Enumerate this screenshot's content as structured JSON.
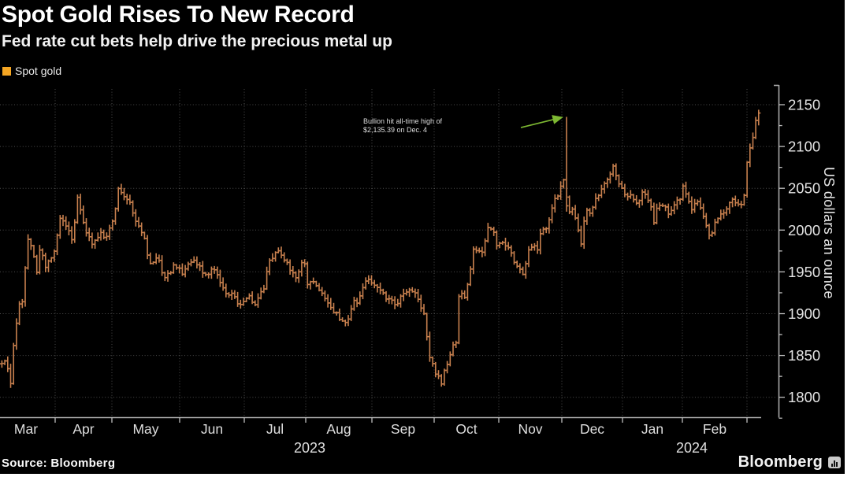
{
  "header": {
    "title": "Spot Gold Rises To New Record",
    "subtitle": "Fed rate cut bets help drive the precious metal up"
  },
  "legend": {
    "label": "Spot gold",
    "swatch_color": "#f5a623"
  },
  "footer": {
    "source_label": "Source: Bloomberg",
    "brand": "Bloomberg"
  },
  "colors": {
    "background": "#000000",
    "bar": "#c8804e",
    "arrow": "#7db832",
    "legend_swatch": "#f5a623",
    "grid": "rgba(235,235,235,0.32)",
    "axis": "#a8a8a8",
    "tick": "#c0c0c0",
    "text": "#e4e4e4"
  },
  "chart_data": {
    "type": "ohlc-bar",
    "title": "Spot Gold Rises To New Record",
    "series_name": "Spot gold",
    "ylabel": "US dollars an ounce",
    "ylim": [
      1770,
      2168
    ],
    "yticks": [
      1800,
      1850,
      1900,
      1950,
      2000,
      2050,
      2100,
      2150
    ],
    "months": [
      "Mar",
      "Apr",
      "May",
      "Jun",
      "Jul",
      "Aug",
      "Sep",
      "Oct",
      "Nov",
      "Dec",
      "Jan",
      "Feb"
    ],
    "year_labels": [
      "2023",
      "2024"
    ],
    "grid": true,
    "legend_position": "top-left",
    "annotation": {
      "line1": "Bullion hit all-time high of",
      "line2": "$2,135.39 on Dec. 4",
      "record_date": "2023-12-04",
      "record_high": 2135.39
    },
    "price_path": [
      [
        "2023-03-01",
        1837
      ],
      [
        "2023-03-02",
        1836
      ],
      [
        "2023-03-06",
        1847
      ],
      [
        "2023-03-08",
        1809
      ],
      [
        "2023-03-10",
        1868
      ],
      [
        "2023-03-13",
        1913
      ],
      [
        "2023-03-15",
        1918
      ],
      [
        "2023-03-17",
        1989
      ],
      [
        "2023-03-20",
        1978
      ],
      [
        "2023-03-22",
        1945
      ],
      [
        "2023-03-24",
        1977
      ],
      [
        "2023-03-27",
        1957
      ],
      [
        "2023-03-29",
        1964
      ],
      [
        "2023-03-31",
        1969
      ],
      [
        "2023-04-04",
        2020
      ],
      [
        "2023-04-06",
        2008
      ],
      [
        "2023-04-10",
        1989
      ],
      [
        "2023-04-13",
        2040
      ],
      [
        "2023-04-17",
        1995
      ],
      [
        "2023-04-19",
        1994
      ],
      [
        "2023-04-21",
        1983
      ],
      [
        "2023-04-25",
        1997
      ],
      [
        "2023-04-28",
        1990
      ],
      [
        "2023-05-02",
        2016
      ],
      [
        "2023-05-04",
        2050
      ],
      [
        "2023-05-09",
        2034
      ],
      [
        "2023-05-12",
        2010
      ],
      [
        "2023-05-16",
        1989
      ],
      [
        "2023-05-18",
        1957
      ],
      [
        "2023-05-22",
        1971
      ],
      [
        "2023-05-25",
        1940
      ],
      [
        "2023-05-30",
        1959
      ],
      [
        "2023-06-02",
        1948
      ],
      [
        "2023-06-06",
        1963
      ],
      [
        "2023-06-09",
        1961
      ],
      [
        "2023-06-14",
        1942
      ],
      [
        "2023-06-16",
        1957
      ],
      [
        "2023-06-21",
        1934
      ],
      [
        "2023-06-23",
        1921
      ],
      [
        "2023-06-26",
        1923
      ],
      [
        "2023-06-29",
        1908
      ],
      [
        "2023-07-03",
        1921
      ],
      [
        "2023-07-06",
        1911
      ],
      [
        "2023-07-11",
        1932
      ],
      [
        "2023-07-13",
        1960
      ],
      [
        "2023-07-18",
        1978
      ],
      [
        "2023-07-20",
        1969
      ],
      [
        "2023-07-24",
        1954
      ],
      [
        "2023-07-27",
        1945
      ],
      [
        "2023-07-31",
        1965
      ],
      [
        "2023-08-02",
        1934
      ],
      [
        "2023-08-04",
        1942
      ],
      [
        "2023-08-08",
        1925
      ],
      [
        "2023-08-11",
        1913
      ],
      [
        "2023-08-15",
        1901
      ],
      [
        "2023-08-18",
        1889
      ],
      [
        "2023-08-21",
        1894
      ],
      [
        "2023-08-23",
        1915
      ],
      [
        "2023-08-25",
        1914
      ],
      [
        "2023-08-29",
        1937
      ],
      [
        "2023-08-31",
        1940
      ],
      [
        "2023-09-01",
        1938
      ],
      [
        "2023-09-05",
        1926
      ],
      [
        "2023-09-08",
        1919
      ],
      [
        "2023-09-12",
        1913
      ],
      [
        "2023-09-14",
        1910
      ],
      [
        "2023-09-15",
        1923
      ],
      [
        "2023-09-20",
        1930
      ],
      [
        "2023-09-22",
        1925
      ],
      [
        "2023-09-26",
        1900
      ],
      [
        "2023-09-28",
        1864
      ],
      [
        "2023-09-29",
        1848
      ],
      [
        "2023-10-02",
        1827
      ],
      [
        "2023-10-04",
        1820
      ],
      [
        "2023-10-05",
        1813
      ],
      [
        "2023-10-06",
        1833
      ],
      [
        "2023-10-10",
        1860
      ],
      [
        "2023-10-12",
        1868
      ],
      [
        "2023-10-13",
        1932
      ],
      [
        "2023-10-16",
        1919
      ],
      [
        "2023-10-18",
        1947
      ],
      [
        "2023-10-20",
        1981
      ],
      [
        "2023-10-24",
        1971
      ],
      [
        "2023-10-27",
        2006
      ],
      [
        "2023-10-30",
        1996
      ],
      [
        "2023-10-31",
        1983
      ],
      [
        "2023-11-02",
        1985
      ],
      [
        "2023-11-06",
        1978
      ],
      [
        "2023-11-09",
        1958
      ],
      [
        "2023-11-13",
        1946
      ],
      [
        "2023-11-14",
        1963
      ],
      [
        "2023-11-16",
        1981
      ],
      [
        "2023-11-20",
        1977
      ],
      [
        "2023-11-21",
        1999
      ],
      [
        "2023-11-24",
        2002
      ],
      [
        "2023-11-28",
        2041
      ],
      [
        "2023-11-30",
        2036
      ],
      [
        "2023-12-01",
        2072
      ],
      [
        "2023-12-04",
        2029
      ],
      [
        "2023-12-05",
        2019
      ],
      [
        "2023-12-07",
        2026
      ],
      [
        "2023-12-11",
        1981
      ],
      [
        "2023-12-13",
        2027
      ],
      [
        "2023-12-15",
        2019
      ],
      [
        "2023-12-19",
        2040
      ],
      [
        "2023-12-21",
        2046
      ],
      [
        "2023-12-26",
        2067
      ],
      [
        "2023-12-27",
        2078
      ],
      [
        "2023-12-29",
        2063
      ],
      [
        "2024-01-03",
        2041
      ],
      [
        "2024-01-05",
        2045
      ],
      [
        "2024-01-09",
        2030
      ],
      [
        "2024-01-12",
        2049
      ],
      [
        "2024-01-16",
        2028
      ],
      [
        "2024-01-17",
        2006
      ],
      [
        "2024-01-19",
        2029
      ],
      [
        "2024-01-23",
        2026
      ],
      [
        "2024-01-25",
        2021
      ],
      [
        "2024-01-29",
        2033
      ],
      [
        "2024-01-31",
        2040
      ],
      [
        "2024-02-01",
        2055
      ],
      [
        "2024-02-05",
        2025
      ],
      [
        "2024-02-08",
        2034
      ],
      [
        "2024-02-13",
        1993
      ],
      [
        "2024-02-14",
        1992
      ],
      [
        "2024-02-16",
        2013
      ],
      [
        "2024-02-20",
        2024
      ],
      [
        "2024-02-23",
        2035
      ],
      [
        "2024-02-27",
        2030
      ],
      [
        "2024-02-29",
        2044
      ],
      [
        "2024-03-01",
        2083
      ],
      [
        "2024-03-04",
        2114
      ],
      [
        "2024-03-05",
        2128
      ],
      [
        "2024-03-07",
        2141
      ]
    ]
  }
}
